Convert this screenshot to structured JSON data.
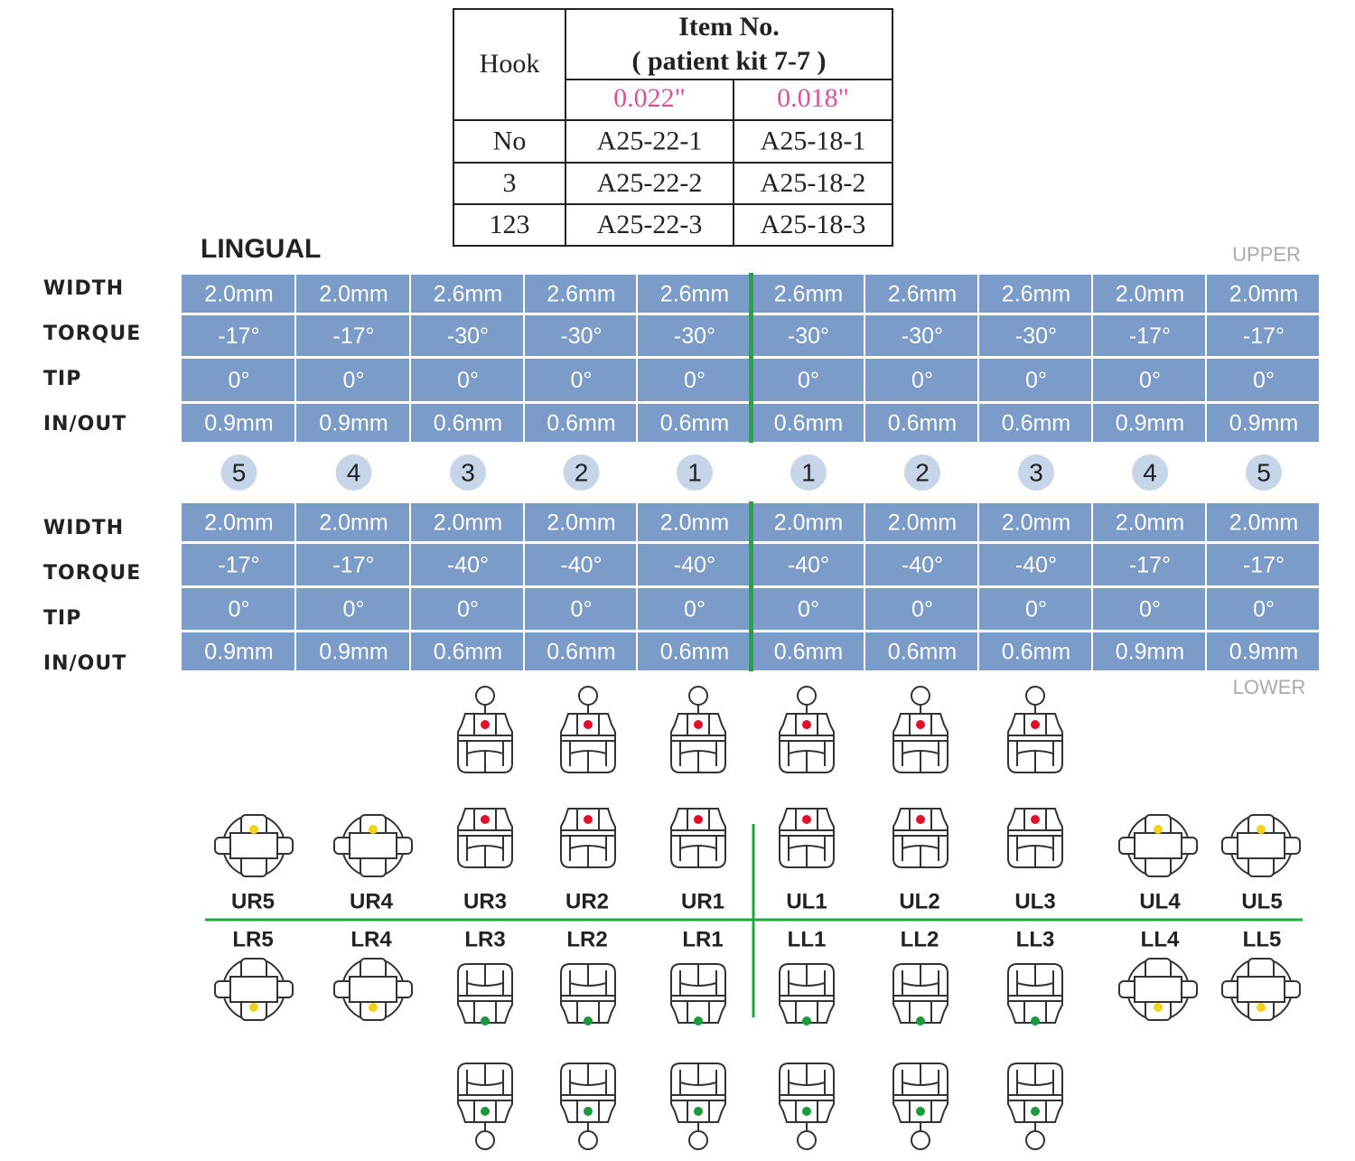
{
  "item_table": {
    "hook_header": "Hook",
    "item_header": "Item No.",
    "kit": "( patient kit 7-7 )",
    "sizes": [
      "0.022\"",
      "0.018\""
    ],
    "rows": [
      [
        "No",
        "A25-22-1",
        "A25-18-1"
      ],
      [
        "3",
        "A25-22-2",
        "A25-18-2"
      ],
      [
        "123",
        "A25-22-3",
        "A25-18-3"
      ]
    ]
  },
  "lingual_label": "LINGUAL",
  "upper_label": "UPPER",
  "lower_label": "LOWER",
  "upper": {
    "labels": [
      "WIDTH",
      "TORQUE",
      "TIP",
      "IN/OUT"
    ],
    "rows": [
      [
        "2.0mm",
        "2.0mm",
        "2.6mm",
        "2.6mm",
        "2.6mm",
        "2.6mm",
        "2.6mm",
        "2.6mm",
        "2.0mm",
        "2.0mm"
      ],
      [
        "-17°",
        "-17°",
        "-30°",
        "-30°",
        "-30°",
        "-30°",
        "-30°",
        "-30°",
        "-17°",
        "-17°"
      ],
      [
        "0°",
        "0°",
        "0°",
        "0°",
        "0°",
        "0°",
        "0°",
        "0°",
        "0°",
        "0°"
      ],
      [
        "0.9mm",
        "0.9mm",
        "0.6mm",
        "0.6mm",
        "0.6mm",
        "0.6mm",
        "0.6mm",
        "0.6mm",
        "0.9mm",
        "0.9mm"
      ]
    ]
  },
  "tooth_numbers": [
    "5",
    "4",
    "3",
    "2",
    "1",
    "1",
    "2",
    "3",
    "4",
    "5"
  ],
  "lower": {
    "labels": [
      "WIDTH",
      "TORQUE",
      "TIP",
      "IN/OUT"
    ],
    "rows": [
      [
        "2.0mm",
        "2.0mm",
        "2.0mm",
        "2.0mm",
        "2.0mm",
        "2.0mm",
        "2.0mm",
        "2.0mm",
        "2.0mm",
        "2.0mm"
      ],
      [
        "-17°",
        "-17°",
        "-40°",
        "-40°",
        "-40°",
        "-40°",
        "-40°",
        "-40°",
        "-17°",
        "-17°"
      ],
      [
        "0°",
        "0°",
        "0°",
        "0°",
        "0°",
        "0°",
        "0°",
        "0°",
        "0°",
        "0°"
      ],
      [
        "0.9mm",
        "0.9mm",
        "0.6mm",
        "0.6mm",
        "0.6mm",
        "0.6mm",
        "0.6mm",
        "0.6mm",
        "0.9mm",
        "0.9mm"
      ]
    ]
  },
  "upper_teeth": [
    "UR5",
    "UR4",
    "UR3",
    "UR2",
    "UR1",
    "UL1",
    "UL2",
    "UL3",
    "UL4",
    "UL5"
  ],
  "lower_teeth": [
    "LR5",
    "LR4",
    "LR3",
    "LR2",
    "LR1",
    "LL1",
    "LL2",
    "LL3",
    "LL4",
    "LL5"
  ]
}
